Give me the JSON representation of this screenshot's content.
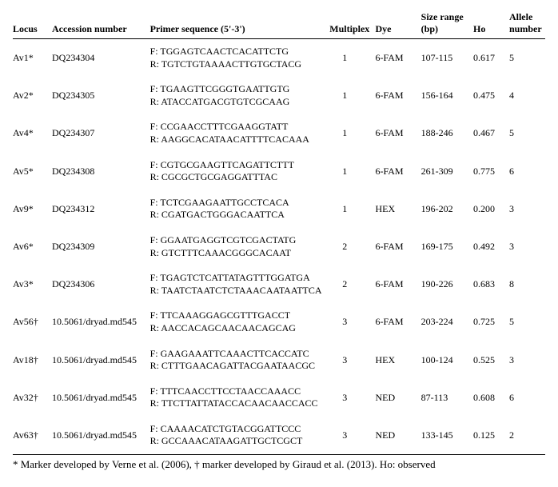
{
  "headers": {
    "locus": "Locus",
    "accession": "Accession number",
    "primer": "Primer sequence (5'-3')",
    "multiplex": "Multiplex",
    "dye": "Dye",
    "size": "Size range (bp)",
    "ho": "Ho",
    "allele": "Allele number"
  },
  "rows": [
    {
      "locus": "Av1*",
      "accession": "DQ234304",
      "primer_f": "F: TGGAGTCAACTCACATTCTG",
      "primer_r": "R: TGTCTGTAAAACTTGTGCTACG",
      "multiplex": "1",
      "dye": "6-FAM",
      "size": "107-115",
      "ho": "0.617",
      "allele": "5"
    },
    {
      "locus": "Av2*",
      "accession": "DQ234305",
      "primer_f": "F: TGAAGTTCGGGTGAATTGTG",
      "primer_r": "R: ATACCATGACGTGTCGCAAG",
      "multiplex": "1",
      "dye": "6-FAM",
      "size": "156-164",
      "ho": "0.475",
      "allele": "4"
    },
    {
      "locus": "Av4*",
      "accession": "DQ234307",
      "primer_f": "F: CCGAACCTTTCGAAGGTATT",
      "primer_r": "R: AAGGCACATAACATTTTCACAAA",
      "multiplex": "1",
      "dye": "6-FAM",
      "size": "188-246",
      "ho": "0.467",
      "allele": "5"
    },
    {
      "locus": "Av5*",
      "accession": "DQ234308",
      "primer_f": "F: CGTGCGAAGTTCAGATTCTTT",
      "primer_r": "R: CGCGCTGCGAGGATTTAC",
      "multiplex": "1",
      "dye": "6-FAM",
      "size": "261-309",
      "ho": "0.775",
      "allele": "6"
    },
    {
      "locus": "Av9*",
      "accession": "DQ234312",
      "primer_f": "F: TCTCGAAGAATTGCCTCACA",
      "primer_r": "R: CGATGACTGGGACAATTCA",
      "multiplex": "1",
      "dye": "HEX",
      "size": "196-202",
      "ho": "0.200",
      "allele": "3"
    },
    {
      "locus": "Av6*",
      "accession": "DQ234309",
      "primer_f": "F: GGAATGAGGTCGTCGACTATG",
      "primer_r": "R: GTCTTTCAAACGGGCACAAT",
      "multiplex": "2",
      "dye": "6-FAM",
      "size": "169-175",
      "ho": "0.492",
      "allele": "3"
    },
    {
      "locus": "Av3*",
      "accession": "DQ234306",
      "primer_f": "F: TGAGTCTCATTATAGTTTGGATGA",
      "primer_r": "R: TAATCTAATCTCTAAACAATAATTCA",
      "multiplex": "2",
      "dye": "6-FAM",
      "size": "190-226",
      "ho": "0.683",
      "allele": "8"
    },
    {
      "locus": "Av56†",
      "accession": "10.5061/dryad.md545",
      "primer_f": "F: TTCAAAGGAGCGTTTGACCT",
      "primer_r": "R: AACCACAGCAACAACAGCAG",
      "multiplex": "3",
      "dye": "6-FAM",
      "size": "203-224",
      "ho": "0.725",
      "allele": "5"
    },
    {
      "locus": "Av18†",
      "accession": "10.5061/dryad.md545",
      "primer_f": "F: GAAGAAATTCAAACTTCACCATC",
      "primer_r": "R: CTTTGAACAGATTACGAATAACGC",
      "multiplex": "3",
      "dye": "HEX",
      "size": "100-124",
      "ho": "0.525",
      "allele": "3"
    },
    {
      "locus": "Av32†",
      "accession": "10.5061/dryad.md545",
      "primer_f": "F: TTTCAACCTTCCTAACCAAACC",
      "primer_r": "R: TTCTTATTATACCACAACAACCACC",
      "multiplex": "3",
      "dye": "NED",
      "size": "87-113",
      "ho": "0.608",
      "allele": "6"
    },
    {
      "locus": "Av63†",
      "accession": "10.5061/dryad.md545",
      "primer_f": "F: CAAAACATCTGTACGGATTCCC",
      "primer_r": "R: GCCAAACATAAGATTGCTCGCT",
      "multiplex": "3",
      "dye": "NED",
      "size": "133-145",
      "ho": "0.125",
      "allele": "2"
    }
  ],
  "footnote": "* Marker developed by Verne et al. (2006), † marker developed by Giraud et al. (2013). Ho: observed"
}
